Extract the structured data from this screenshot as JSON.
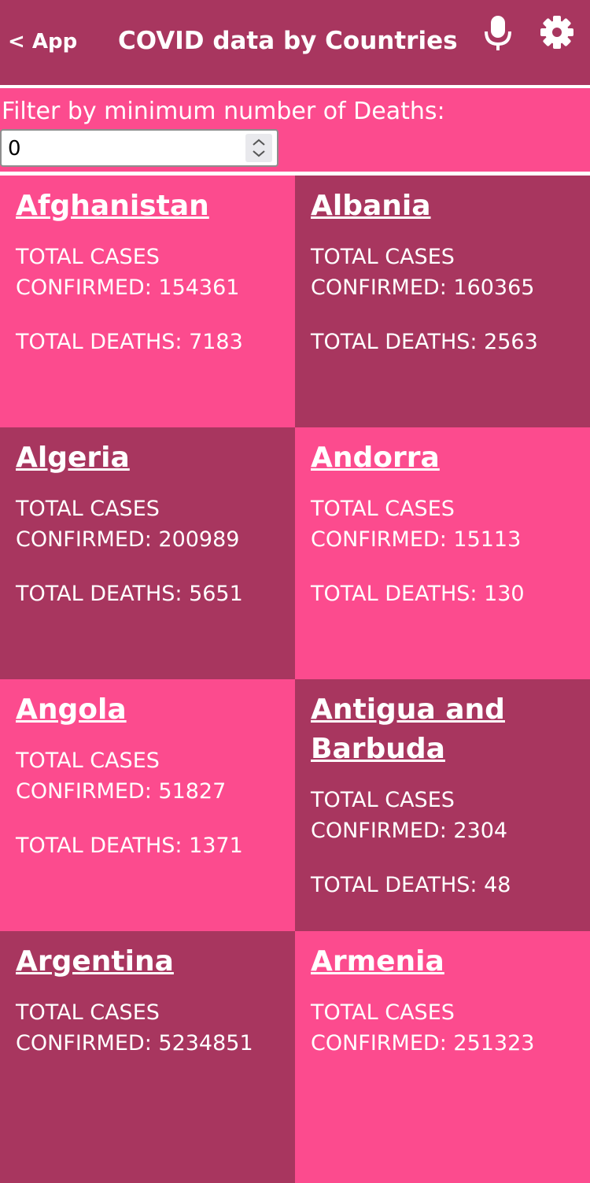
{
  "header": {
    "back_label": "< App",
    "title": "COVID data by Countries",
    "mic_icon": "microphone-icon",
    "settings_icon": "gear-icon"
  },
  "filter": {
    "label": "Filter by minimum number of Deaths:",
    "value": "0"
  },
  "labels": {
    "cases_line1": "TOTAL CASES",
    "cases_prefix": "CONFIRMED: ",
    "deaths_prefix": "TOTAL DEATHS: "
  },
  "colors": {
    "header_bg": "#a8365f",
    "pink": "#fc4b8e",
    "dark": "#a8365f"
  },
  "countries": [
    {
      "name": "Afghanistan",
      "confirmed": "154361",
      "deaths": "7183"
    },
    {
      "name": "Albania",
      "confirmed": "160365",
      "deaths": "2563"
    },
    {
      "name": "Algeria",
      "confirmed": "200989",
      "deaths": "5651"
    },
    {
      "name": "Andorra",
      "confirmed": "15113",
      "deaths": "130"
    },
    {
      "name": "Angola",
      "confirmed": "51827",
      "deaths": "1371"
    },
    {
      "name": "Antigua and Barbuda",
      "confirmed": "2304",
      "deaths": "48"
    },
    {
      "name": "Argentina",
      "confirmed": "5234851",
      "deaths": ""
    },
    {
      "name": "Armenia",
      "confirmed": "251323",
      "deaths": ""
    }
  ]
}
